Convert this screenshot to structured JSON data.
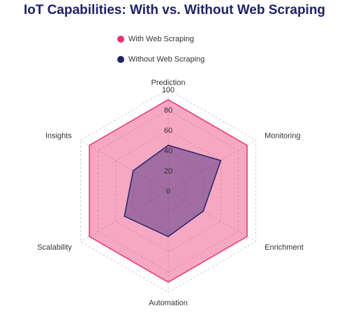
{
  "chart_data": {
    "type": "radar",
    "title": "IoT Capabilities: With vs. Without Web Scraping",
    "axes": [
      "Prediction",
      "Monitoring",
      "Enrichment",
      "Automation",
      "Scalability",
      "Insights"
    ],
    "r_ticks": [
      0,
      20,
      40,
      60,
      80,
      100
    ],
    "rlim": [
      0,
      100
    ],
    "grid": true,
    "legend_position": "top",
    "series": [
      {
        "name": "With Web Scraping",
        "values": [
          90,
          90,
          90,
          90,
          90,
          90
        ],
        "color": "#e8336d",
        "fill": "rgba(238,82,136,0.5)"
      },
      {
        "name": "Without Web Scraping",
        "values": [
          45,
          60,
          40,
          45,
          50,
          40
        ],
        "color": "#232366",
        "fill": "rgba(60,40,120,0.45)"
      }
    ]
  }
}
